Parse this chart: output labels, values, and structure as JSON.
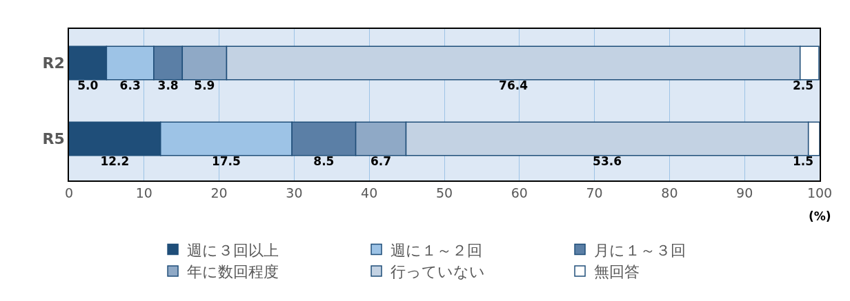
{
  "chart_data": {
    "type": "bar",
    "orientation": "horizontal",
    "stacked": true,
    "categories": [
      "R2",
      "R5"
    ],
    "series": [
      {
        "name": "週に３回以上",
        "color": "#1f4e79",
        "values": [
          5.0,
          12.2
        ],
        "value_labels": [
          "5.0",
          "12.2"
        ]
      },
      {
        "name": "週に１～２回",
        "color": "#9dc3e6",
        "values": [
          6.3,
          17.5
        ],
        "value_labels": [
          "6.3",
          "17.5"
        ]
      },
      {
        "name": "月に１～３回",
        "color": "#5b7fa6",
        "values": [
          3.8,
          8.5
        ],
        "value_labels": [
          "3.8",
          "8.5"
        ]
      },
      {
        "name": "年に数回程度",
        "color": "#8fa9c6",
        "values": [
          5.9,
          6.7
        ],
        "value_labels": [
          "5.9",
          "6.7"
        ]
      },
      {
        "name": "行っていない",
        "color": "#c3d2e3",
        "values": [
          76.4,
          53.6
        ],
        "value_labels": [
          "76.4",
          "53.6"
        ]
      },
      {
        "name": "無回答",
        "color": "#ffffff",
        "values": [
          2.5,
          1.5
        ],
        "value_labels": [
          "2.5",
          "1.5"
        ]
      }
    ],
    "xlim": [
      0,
      100
    ],
    "xticks": [
      0,
      10,
      20,
      30,
      40,
      50,
      60,
      70,
      80,
      90,
      100
    ],
    "xlabel": "(%)",
    "grid": "x",
    "legend": "bottom"
  }
}
